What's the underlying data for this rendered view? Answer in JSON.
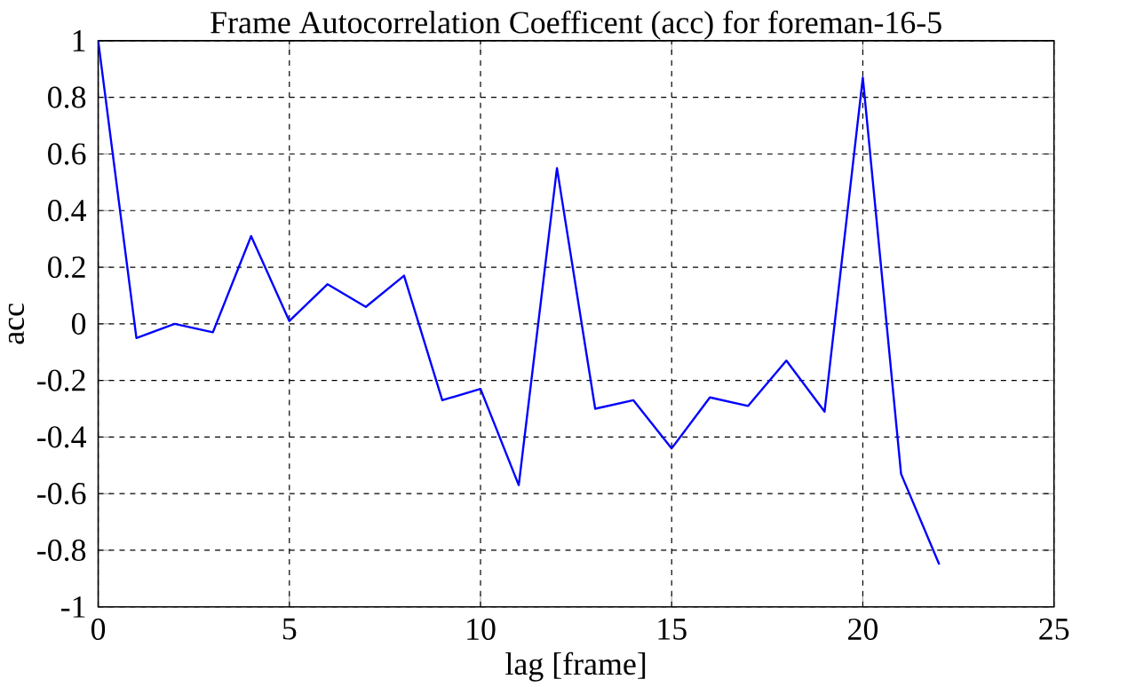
{
  "chart_data": {
    "type": "line",
    "title": "Frame Autocorrelation Coefficent (acc) for foreman-16-5",
    "xlabel": "lag [frame]",
    "ylabel": "acc",
    "x": [
      0,
      1,
      2,
      3,
      4,
      5,
      6,
      7,
      8,
      9,
      10,
      11,
      12,
      13,
      14,
      15,
      16,
      17,
      18,
      19,
      20,
      21,
      22
    ],
    "series": [
      {
        "color": "#0000ff",
        "values": [
          1,
          -0.05,
          0.0,
          -0.03,
          0.31,
          0.01,
          0.14,
          0.06,
          0.17,
          -0.27,
          -0.23,
          -0.57,
          0.55,
          -0.3,
          -0.27,
          -0.44,
          -0.26,
          -0.29,
          -0.13,
          -0.31,
          0.87,
          -0.53,
          -0.85
        ]
      }
    ],
    "xlim": [
      0,
      25
    ],
    "ylim": [
      -1,
      1
    ],
    "xticks": [
      0,
      5,
      10,
      15,
      20,
      25
    ],
    "yticks": [
      -1,
      -0.8,
      -0.6,
      -0.4,
      -0.2,
      0,
      0.2,
      0.4,
      0.6,
      0.8,
      1
    ],
    "grid": true,
    "line_style": "solid",
    "marker": "none"
  }
}
